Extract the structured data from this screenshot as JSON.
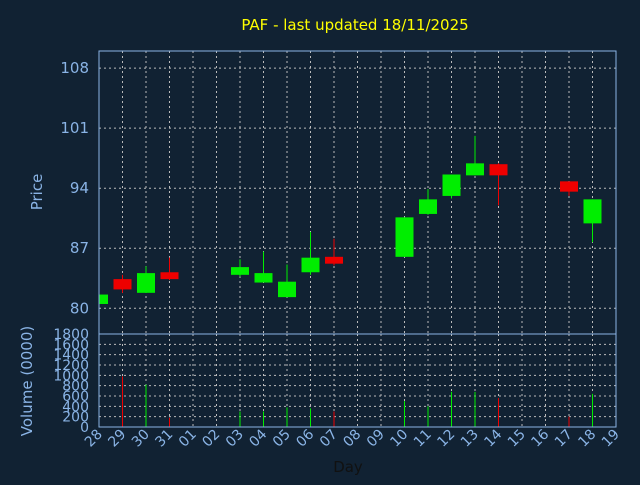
{
  "chart_data": {
    "type": "candlestick",
    "title": "PAF - last updated 18/11/2025",
    "xlabel": "Day",
    "price_panel": {
      "ylabel": "Price",
      "ylim": [
        77,
        110
      ],
      "yticks": [
        80,
        87,
        94,
        101,
        108
      ],
      "grid": true
    },
    "volume_panel": {
      "ylabel": "Volume (0000)",
      "ylim": [
        0,
        1800
      ],
      "yticks": [
        0,
        200,
        400,
        600,
        800,
        1000,
        1200,
        1400,
        1600,
        1800
      ],
      "grid": true
    },
    "x_ticks": [
      "28",
      "29",
      "30",
      "31",
      "01",
      "02",
      "03",
      "04",
      "05",
      "06",
      "07",
      "08",
      "09",
      "10",
      "11",
      "12",
      "13",
      "14",
      "15",
      "16",
      "17",
      "18",
      "19"
    ],
    "candles": [
      {
        "day": "28",
        "open": 80.5,
        "high": 81.6,
        "low": 80.5,
        "close": 81.6,
        "volume": 0
      },
      {
        "day": "29",
        "open": 83.4,
        "high": 83.9,
        "low": 81.8,
        "close": 82.2,
        "volume": 980
      },
      {
        "day": "30",
        "open": 81.8,
        "high": 84.9,
        "low": 81.8,
        "close": 84.1,
        "volume": 820
      },
      {
        "day": "31",
        "open": 84.2,
        "high": 85.9,
        "low": 83.3,
        "close": 83.4,
        "volume": 180
      },
      {
        "day": "03",
        "open": 83.9,
        "high": 85.7,
        "low": 83.7,
        "close": 84.8,
        "volume": 300
      },
      {
        "day": "04",
        "open": 83.0,
        "high": 86.6,
        "low": 83.0,
        "close": 84.1,
        "volume": 300
      },
      {
        "day": "05",
        "open": 81.3,
        "high": 85.1,
        "low": 81.3,
        "close": 83.1,
        "volume": 380
      },
      {
        "day": "06",
        "open": 84.2,
        "high": 88.9,
        "low": 83.9,
        "close": 85.9,
        "volume": 360
      },
      {
        "day": "07",
        "open": 86.0,
        "high": 88.1,
        "low": 85.0,
        "close": 85.2,
        "volume": 300
      },
      {
        "day": "10",
        "open": 86.0,
        "high": 90.6,
        "low": 86.0,
        "close": 90.6,
        "volume": 500
      },
      {
        "day": "11",
        "open": 91.0,
        "high": 93.9,
        "low": 90.9,
        "close": 92.7,
        "volume": 400
      },
      {
        "day": "12",
        "open": 93.1,
        "high": 95.6,
        "low": 92.8,
        "close": 95.6,
        "volume": 680
      },
      {
        "day": "13",
        "open": 95.5,
        "high": 100.1,
        "low": 95.5,
        "close": 96.9,
        "volume": 680
      },
      {
        "day": "14",
        "open": 96.8,
        "high": 96.9,
        "low": 92.0,
        "close": 95.5,
        "volume": 560
      },
      {
        "day": "17",
        "open": 94.8,
        "high": 94.8,
        "low": 93.1,
        "close": 93.6,
        "volume": 200
      },
      {
        "day": "18",
        "open": 89.9,
        "high": 92.7,
        "low": 87.7,
        "close": 92.7,
        "volume": 640
      }
    ],
    "colors": {
      "up": "#00ee00",
      "down": "#ee0000",
      "grid": "#bbbbbb",
      "axis": "#8ab4e6",
      "title": "#ffff00",
      "background": "#112233"
    }
  }
}
